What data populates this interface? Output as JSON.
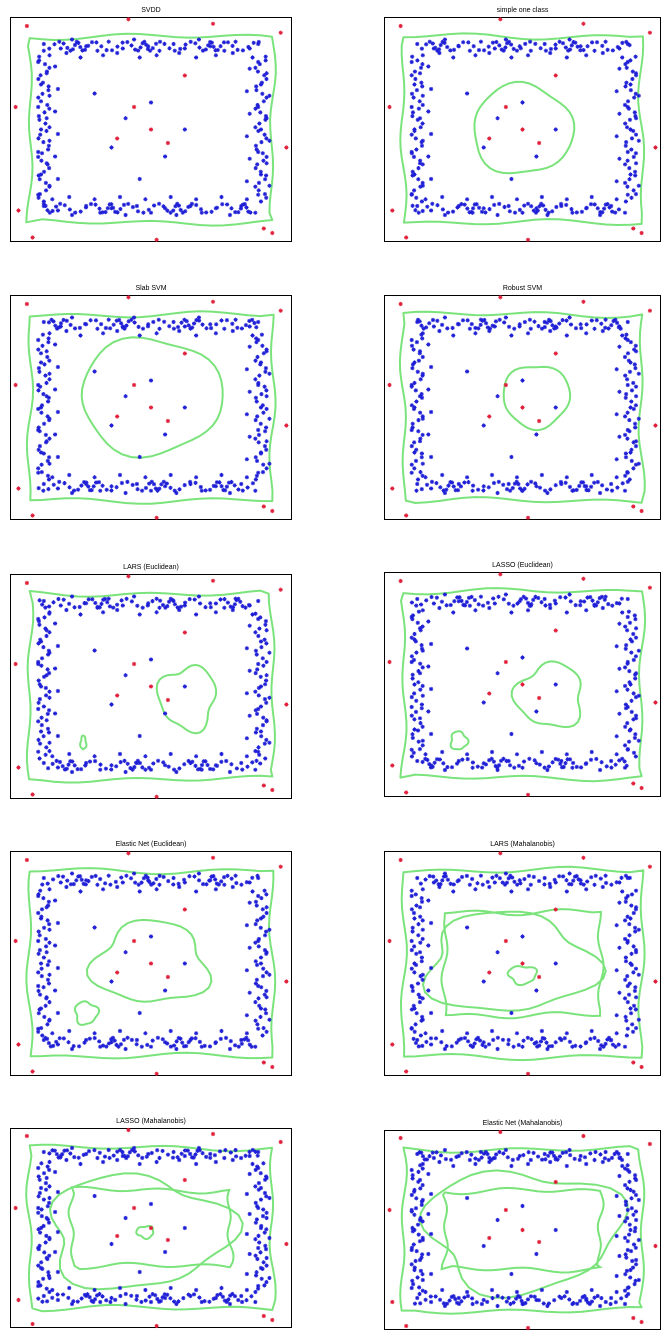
{
  "figure": {
    "panels": [
      {
        "id": "svdd",
        "title": "SVDD"
      },
      {
        "id": "simple-one-class",
        "title": "simple one class"
      },
      {
        "id": "slab-svm",
        "title": "Slab SVM"
      },
      {
        "id": "robust-svm",
        "title": "Robust SVM"
      },
      {
        "id": "lars-euclidean",
        "title": "LARS (Euclidean)"
      },
      {
        "id": "lasso-euclidean",
        "title": "LASSO (Euclidean)"
      },
      {
        "id": "elastic-net-euclidean",
        "title": "Elastic Net (Euclidean)"
      },
      {
        "id": "lars-mahalanobis",
        "title": "LARS (Mahalanobis)"
      },
      {
        "id": "lasso-mahalanobis",
        "title": "LASSO (Mahalanobis)"
      },
      {
        "id": "elastic-net-mahalanobis",
        "title": "Elastic Net (Mahalanobis)"
      }
    ]
  },
  "colors": {
    "inlier": "#1f1fd6",
    "outlier": "#e01f3a",
    "boundary": "#7be37b",
    "axes": "#000000"
  },
  "chart_data": {
    "type": "scatter",
    "xlim": [
      0,
      1
    ],
    "ylim": [
      0,
      1
    ],
    "grid": false,
    "series": [
      {
        "points": [
          [
            0.12,
            0.88
          ],
          [
            0.18,
            0.86
          ],
          [
            0.22,
            0.9
          ],
          [
            0.27,
            0.87
          ],
          [
            0.31,
            0.85
          ],
          [
            0.35,
            0.89
          ],
          [
            0.4,
            0.86
          ],
          [
            0.44,
            0.9
          ],
          [
            0.49,
            0.87
          ],
          [
            0.53,
            0.85
          ],
          [
            0.58,
            0.88
          ],
          [
            0.62,
            0.86
          ],
          [
            0.67,
            0.9
          ],
          [
            0.71,
            0.87
          ],
          [
            0.76,
            0.85
          ],
          [
            0.8,
            0.89
          ],
          [
            0.85,
            0.86
          ],
          [
            0.88,
            0.88
          ],
          [
            0.14,
            0.83
          ],
          [
            0.2,
            0.84
          ],
          [
            0.25,
            0.82
          ],
          [
            0.33,
            0.83
          ],
          [
            0.38,
            0.84
          ],
          [
            0.46,
            0.82
          ],
          [
            0.52,
            0.83
          ],
          [
            0.6,
            0.84
          ],
          [
            0.66,
            0.82
          ],
          [
            0.73,
            0.83
          ],
          [
            0.79,
            0.84
          ],
          [
            0.86,
            0.82
          ],
          [
            0.12,
            0.16
          ],
          [
            0.17,
            0.14
          ],
          [
            0.22,
            0.12
          ],
          [
            0.27,
            0.16
          ],
          [
            0.32,
            0.13
          ],
          [
            0.36,
            0.15
          ],
          [
            0.41,
            0.12
          ],
          [
            0.45,
            0.16
          ],
          [
            0.5,
            0.13
          ],
          [
            0.55,
            0.15
          ],
          [
            0.59,
            0.12
          ],
          [
            0.64,
            0.16
          ],
          [
            0.68,
            0.13
          ],
          [
            0.73,
            0.15
          ],
          [
            0.78,
            0.12
          ],
          [
            0.82,
            0.16
          ],
          [
            0.87,
            0.13
          ],
          [
            0.15,
            0.19
          ],
          [
            0.21,
            0.2
          ],
          [
            0.3,
            0.19
          ],
          [
            0.39,
            0.2
          ],
          [
            0.48,
            0.19
          ],
          [
            0.57,
            0.2
          ],
          [
            0.66,
            0.19
          ],
          [
            0.75,
            0.2
          ],
          [
            0.84,
            0.19
          ],
          [
            0.1,
            0.8
          ],
          [
            0.13,
            0.75
          ],
          [
            0.11,
            0.7
          ],
          [
            0.14,
            0.65
          ],
          [
            0.1,
            0.6
          ],
          [
            0.13,
            0.55
          ],
          [
            0.11,
            0.5
          ],
          [
            0.14,
            0.45
          ],
          [
            0.1,
            0.4
          ],
          [
            0.13,
            0.35
          ],
          [
            0.11,
            0.3
          ],
          [
            0.14,
            0.25
          ],
          [
            0.1,
            0.21
          ],
          [
            0.16,
            0.78
          ],
          [
            0.17,
            0.68
          ],
          [
            0.16,
            0.58
          ],
          [
            0.17,
            0.48
          ],
          [
            0.16,
            0.38
          ],
          [
            0.17,
            0.28
          ],
          [
            0.88,
            0.8
          ],
          [
            0.91,
            0.75
          ],
          [
            0.89,
            0.7
          ],
          [
            0.92,
            0.65
          ],
          [
            0.88,
            0.6
          ],
          [
            0.91,
            0.55
          ],
          [
            0.89,
            0.5
          ],
          [
            0.92,
            0.45
          ],
          [
            0.88,
            0.4
          ],
          [
            0.91,
            0.35
          ],
          [
            0.89,
            0.3
          ],
          [
            0.92,
            0.25
          ],
          [
            0.88,
            0.21
          ],
          [
            0.85,
            0.77
          ],
          [
            0.84,
            0.67
          ],
          [
            0.85,
            0.57
          ],
          [
            0.84,
            0.47
          ],
          [
            0.85,
            0.37
          ],
          [
            0.84,
            0.27
          ],
          [
            0.3,
            0.66
          ],
          [
            0.41,
            0.55
          ],
          [
            0.5,
            0.62
          ],
          [
            0.36,
            0.42
          ],
          [
            0.55,
            0.38
          ],
          [
            0.46,
            0.28
          ],
          [
            0.62,
            0.5
          ]
        ]
      },
      {
        "points": [
          [
            0.06,
            0.96
          ],
          [
            0.42,
            0.99
          ],
          [
            0.72,
            0.97
          ],
          [
            0.96,
            0.93
          ],
          [
            0.02,
            0.6
          ],
          [
            0.98,
            0.42
          ],
          [
            0.03,
            0.14
          ],
          [
            0.08,
            0.02
          ],
          [
            0.52,
            0.01
          ],
          [
            0.93,
            0.04
          ],
          [
            0.62,
            0.74
          ],
          [
            0.38,
            0.46
          ],
          [
            0.5,
            0.5
          ],
          [
            0.44,
            0.6
          ],
          [
            0.56,
            0.44
          ],
          [
            0.9,
            0.06
          ]
        ]
      }
    ]
  }
}
